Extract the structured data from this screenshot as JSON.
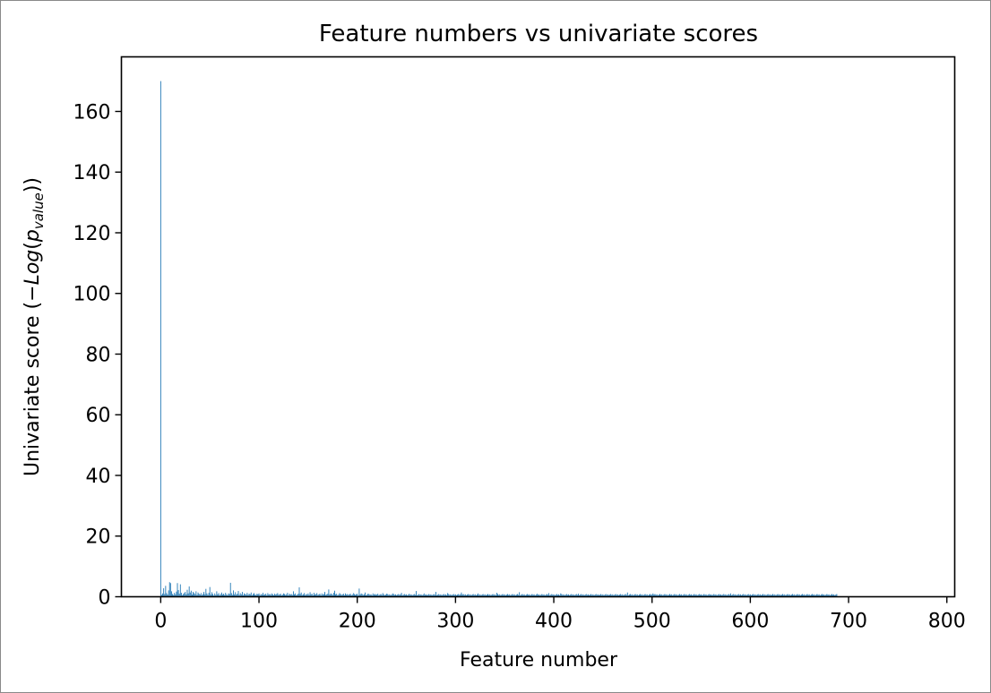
{
  "chart_data": {
    "type": "bar",
    "title": "Feature numbers vs univariate scores",
    "xlabel": "Feature number",
    "ylabel": "Univariate score (",
    "ylabel_math": {
      "minus": "−",
      "log": "Log",
      "open_paren": "(",
      "p": "p",
      "subscript": "value",
      "close_parens": "))"
    },
    "xlim": [
      -40,
      808
    ],
    "ylim": [
      0,
      178
    ],
    "xticks": [
      0,
      100,
      200,
      300,
      400,
      500,
      600,
      700,
      800
    ],
    "yticks": [
      0,
      20,
      40,
      60,
      80,
      100,
      120,
      140,
      160
    ],
    "xtick_labels": [
      "0",
      "100",
      "200",
      "300",
      "400",
      "500",
      "600",
      "700",
      "800"
    ],
    "ytick_labels": [
      "0",
      "20",
      "40",
      "60",
      "80",
      "100",
      "120",
      "140",
      "160"
    ],
    "bar_color": "#1f77b4",
    "n_features": 768,
    "series": [
      {
        "values": [
          170,
          0.6,
          1.1,
          2.8,
          0.9,
          3.6,
          1.2,
          0.7,
          2.1,
          4.8,
          4.5,
          1.8,
          0.9,
          0.6,
          1.3,
          0.8,
          1.7,
          4.5,
          2.2,
          1.0,
          4.1,
          1.3,
          0.5,
          0.9,
          1.2,
          1.6,
          0.8,
          2.3,
          1.1,
          3.4,
          1.4,
          2.0,
          0.7,
          1.6,
          1.2,
          0.9,
          1.8,
          0.6,
          1.4,
          1.0,
          0.7,
          1.2,
          0.5,
          0.9,
          1.6,
          0.8,
          2.6,
          1.1,
          0.6,
          1.3,
          3.2,
          0.7,
          1.5,
          0.9,
          0.4,
          1.1,
          0.6,
          1.8,
          0.8,
          1.2,
          0.5,
          0.9,
          1.4,
          0.7,
          1.0,
          0.6,
          1.3,
          0.8,
          0.5,
          1.1,
          0.9,
          4.6,
          1.2,
          0.6,
          2.1,
          0.8,
          1.5,
          0.7,
          1.0,
          1.9,
          0.6,
          1.2,
          0.8,
          1.6,
          0.5,
          1.1,
          0.9,
          0.7,
          1.3,
          0.6,
          1.0,
          0.8,
          1.4,
          0.5,
          0.9,
          1.2,
          0.7,
          0.6,
          1.0,
          0.8,
          1.1,
          0.5,
          0.9,
          0.7,
          1.3,
          0.6,
          0.8,
          1.0,
          0.5,
          1.2,
          0.7,
          0.9,
          0.6,
          1.1,
          0.8,
          0.5,
          1.0,
          0.7,
          0.9,
          1.2,
          0.6,
          0.8,
          1.0,
          0.5,
          0.7,
          1.1,
          0.9,
          0.6,
          0.8,
          1.3,
          0.5,
          1.0,
          0.7,
          0.9,
          0.6,
          1.8,
          0.8,
          1.1,
          0.5,
          0.7,
          1.0,
          3.1,
          0.9,
          1.4,
          0.6,
          0.8,
          1.2,
          0.5,
          0.9,
          0.7,
          1.1,
          0.6,
          1.5,
          0.8,
          1.0,
          0.5,
          1.3,
          0.7,
          0.9,
          1.2,
          0.6,
          0.8,
          1.0,
          0.5,
          1.1,
          0.7,
          0.9,
          1.6,
          0.6,
          0.8,
          1.0,
          2.4,
          0.7,
          1.1,
          0.9,
          0.6,
          1.3,
          2.0,
          0.8,
          1.0,
          0.5,
          0.7,
          1.2,
          0.9,
          0.6,
          0.8,
          1.0,
          0.5,
          1.1,
          0.7,
          0.9,
          0.6,
          0.8,
          1.0,
          0.5,
          0.7,
          1.2,
          0.9,
          0.6,
          0.8,
          1.0,
          0.5,
          2.7,
          0.7,
          1.1,
          0.9,
          0.6,
          0.8,
          1.4,
          0.5,
          0.7,
          1.0,
          0.9,
          0.6,
          0.8,
          0.5,
          1.1,
          0.7,
          0.9,
          0.6,
          0.8,
          1.0,
          0.5,
          0.7,
          0.9,
          0.6,
          1.2,
          0.8,
          0.5,
          0.7,
          1.0,
          0.9,
          0.6,
          0.8,
          0.5,
          0.7,
          1.1,
          0.9,
          0.6,
          0.8,
          0.5,
          0.7,
          0.9,
          0.6,
          0.8,
          1.3,
          0.5,
          0.7,
          0.9,
          0.6,
          0.8,
          0.5,
          0.7,
          1.0,
          0.6,
          0.8,
          0.5,
          0.7,
          0.9,
          0.6,
          1.9,
          0.5,
          0.7,
          0.9,
          0.6,
          0.8,
          0.5,
          0.7,
          1.1,
          0.6,
          0.8,
          0.5,
          0.7,
          0.9,
          0.6,
          0.8,
          0.5,
          0.7,
          0.9,
          0.6,
          1.6,
          0.5,
          0.7,
          0.9,
          0.6,
          0.8,
          0.5,
          0.7,
          0.9,
          0.6,
          0.8,
          0.5,
          1.2,
          0.9,
          0.6,
          0.8,
          0.5,
          0.7,
          0.9,
          0.6,
          0.8,
          0.5,
          0.7,
          0.9,
          0.6,
          0.8,
          1.4,
          0.7,
          0.9,
          0.6,
          0.8,
          0.5,
          0.7,
          0.9,
          0.6,
          0.8,
          0.5,
          0.7,
          0.9,
          0.6,
          0.8,
          0.5,
          0.7,
          1.1,
          0.6,
          0.8,
          0.5,
          0.7,
          0.9,
          0.6,
          0.8,
          0.5,
          0.7,
          0.9,
          0.6,
          0.8,
          0.5,
          0.7,
          0.9,
          0.6,
          0.8,
          0.5,
          1.3,
          0.9,
          0.6,
          0.8,
          0.5,
          0.7,
          0.9,
          0.6,
          0.8,
          0.5,
          0.7,
          0.9,
          0.6,
          0.8,
          0.5,
          0.7,
          0.9,
          0.6,
          0.8,
          0.5,
          0.7,
          0.9,
          0.6,
          1.5,
          0.5,
          0.7,
          0.9,
          0.6,
          0.8,
          0.5,
          0.7,
          0.9,
          0.6,
          0.8,
          0.5,
          0.7,
          0.9,
          0.6,
          0.8,
          0.5,
          0.7,
          1.0,
          0.6,
          0.8,
          0.5,
          0.7,
          0.9,
          0.6,
          0.8,
          0.5,
          0.7,
          0.9,
          0.6,
          1.2,
          0.5,
          0.7,
          0.9,
          0.6,
          0.8,
          0.5,
          0.7,
          0.9,
          0.6,
          0.8,
          0.5,
          1.1,
          0.9,
          0.6,
          0.8,
          0.5,
          0.7,
          0.9,
          0.6,
          0.8,
          0.5,
          0.7,
          0.9,
          0.6,
          0.8,
          0.5,
          0.7,
          0.9,
          0.6,
          1.0,
          0.5,
          0.7,
          0.9,
          0.6,
          0.8,
          0.5,
          0.7,
          0.9,
          0.6,
          0.8,
          0.5,
          0.7,
          0.9,
          0.6,
          0.8,
          0.5,
          0.7,
          0.9,
          0.6,
          0.8,
          0.5,
          0.7,
          0.9,
          0.6,
          0.8,
          0.5,
          0.7,
          0.9,
          0.6,
          0.8,
          0.5,
          0.7,
          0.9,
          0.6,
          0.8,
          0.5,
          0.7,
          0.9,
          0.6,
          0.8,
          0.5,
          0.7,
          0.9,
          0.6,
          0.8,
          0.5,
          0.7,
          0.9,
          0.6,
          1.4,
          0.5,
          0.7,
          0.9,
          0.6,
          0.8,
          0.5,
          0.7,
          0.9,
          0.6,
          0.8,
          0.5,
          0.7,
          0.9,
          0.6,
          0.8,
          0.5,
          0.7,
          0.9,
          0.6,
          0.8,
          0.5,
          0.7,
          0.9,
          0.6,
          0.8,
          1.1,
          0.7,
          0.9,
          0.6,
          0.8,
          0.5,
          0.7,
          0.9,
          0.6,
          0.8,
          0.5,
          0.7,
          0.9,
          0.6,
          0.8,
          0.5,
          0.7,
          0.9,
          0.6,
          0.8,
          0.5,
          0.7,
          0.9,
          0.6,
          0.8,
          0.5,
          0.7,
          0.9,
          0.6,
          0.8,
          0.5,
          0.7,
          0.9,
          0.6,
          0.8,
          0.5,
          0.7,
          0.9,
          0.6,
          0.8,
          0.5,
          0.7,
          0.9,
          0.6,
          0.8,
          0.5,
          0.7,
          0.9,
          0.6,
          0.8,
          0.5,
          0.7,
          0.9,
          0.6,
          0.8,
          0.5,
          0.7,
          0.9,
          0.6,
          0.8,
          0.5,
          0.7,
          0.9,
          0.6,
          0.8,
          0.5,
          0.7,
          0.9,
          0.6,
          0.8,
          0.5,
          0.7,
          0.9,
          0.6,
          0.8,
          0.5,
          0.7,
          0.9,
          0.6,
          1.1,
          0.5,
          0.7,
          0.9,
          0.6,
          0.8,
          0.5,
          0.7,
          0.9,
          0.6,
          0.8,
          0.5,
          0.7,
          0.9,
          0.6,
          0.8,
          0.5,
          0.7,
          0.9,
          0.6,
          0.8,
          0.5,
          0.7,
          0.9,
          0.6,
          0.8,
          0.5,
          0.7,
          0.9,
          0.6,
          0.8,
          0.5,
          0.7,
          0.9,
          0.6,
          0.8,
          0.5,
          0.7,
          0.9,
          0.6,
          0.8,
          0.5,
          0.7,
          0.9,
          0.6,
          0.8,
          0.5,
          0.7,
          0.9,
          0.6,
          0.8,
          0.5,
          0.7,
          0.9,
          0.6,
          0.8,
          0.5,
          0.7,
          0.9,
          0.6,
          0.8,
          0.5,
          0.7,
          0.9,
          0.6,
          0.8,
          0.5,
          0.7,
          0.9,
          0.6,
          0.8,
          0.5,
          0.7,
          0.9,
          0.6,
          0.8,
          0.5,
          0.7,
          0.9,
          0.6,
          0.8,
          0.5,
          0.7,
          0.9,
          0.6,
          0.8,
          0.5,
          0.7,
          0.9,
          0.6,
          0.8,
          0.5,
          0.7,
          0.9,
          0.6,
          0.8,
          0.5,
          0.7,
          0.9,
          0.6,
          0.8,
          0.5,
          0.7,
          0.9,
          0.6,
          0.8,
          0.5,
          0.7,
          0.9
        ]
      }
    ]
  }
}
